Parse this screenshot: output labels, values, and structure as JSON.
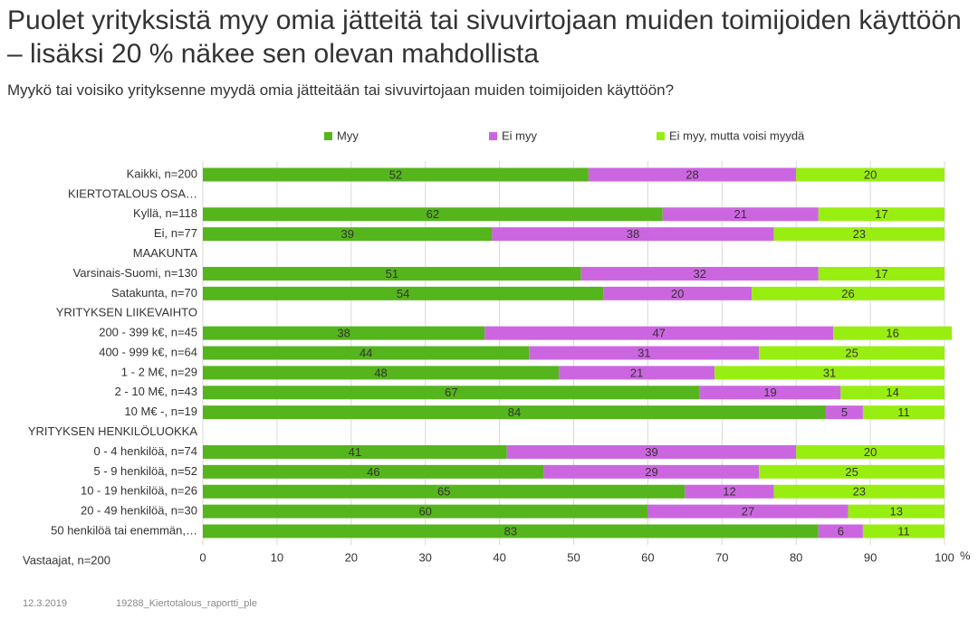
{
  "chart_data": {
    "type": "stacked_bar_horizontal",
    "title": "Puolet yrityksistä myy omia jätteitä tai sivuvirtojaan muiden toimijoiden käyttöön – lisäksi 20 % näkee sen olevan mahdollista",
    "subtitle": "Myykö tai voisiko yrityksenne myydä omia jätteitään tai sivuvirtojaan muiden toimijoiden käyttöön?",
    "categories": [
      "Kaikki, n=200",
      "KIERTOTALOUS OSA…",
      "Kyllä, n=118",
      "Ei, n=77",
      "MAAKUNTA",
      "Varsinais-Suomi, n=130",
      "Satakunta, n=70",
      "YRITYKSEN LIIKEVAIHTO",
      "200 - 399 k€, n=45",
      "400 - 999 k€, n=64",
      "1 - 2 M€, n=29",
      "2 - 10 M€, n=43",
      "10 M€ -, n=19",
      "YRITYKSEN HENKILÖLUOKKA",
      "0 - 4 henkilöä, n=74",
      "5 - 9 henkilöä, n=52",
      "10 - 19 henkilöä, n=26",
      "20 - 49 henkilöä, n=30",
      "50 henkilöä tai enemmän,…"
    ],
    "series": [
      {
        "name": "Myy",
        "color": "#55b51c",
        "values": [
          52,
          null,
          62,
          39,
          null,
          51,
          54,
          null,
          38,
          44,
          48,
          67,
          84,
          null,
          41,
          46,
          65,
          60,
          83
        ]
      },
      {
        "name": "Ei myy",
        "color": "#cc66e0",
        "values": [
          28,
          null,
          21,
          38,
          null,
          32,
          20,
          null,
          47,
          31,
          21,
          19,
          5,
          null,
          39,
          29,
          12,
          27,
          6
        ]
      },
      {
        "name": "Ei myy, mutta voisi myydä",
        "color": "#99ee11",
        "values": [
          20,
          null,
          17,
          23,
          null,
          17,
          26,
          null,
          16,
          25,
          31,
          14,
          11,
          null,
          20,
          25,
          23,
          13,
          11
        ]
      }
    ],
    "xlim": [
      0,
      100
    ],
    "xticks": [
      0,
      10,
      20,
      30,
      40,
      50,
      60,
      70,
      80,
      90,
      100
    ],
    "x_unit": "%",
    "grid": true,
    "note": "Vastaajat, n=200",
    "footer": [
      "12.3.2019",
      "19288_Kiertotalous_raportti_ple"
    ]
  }
}
